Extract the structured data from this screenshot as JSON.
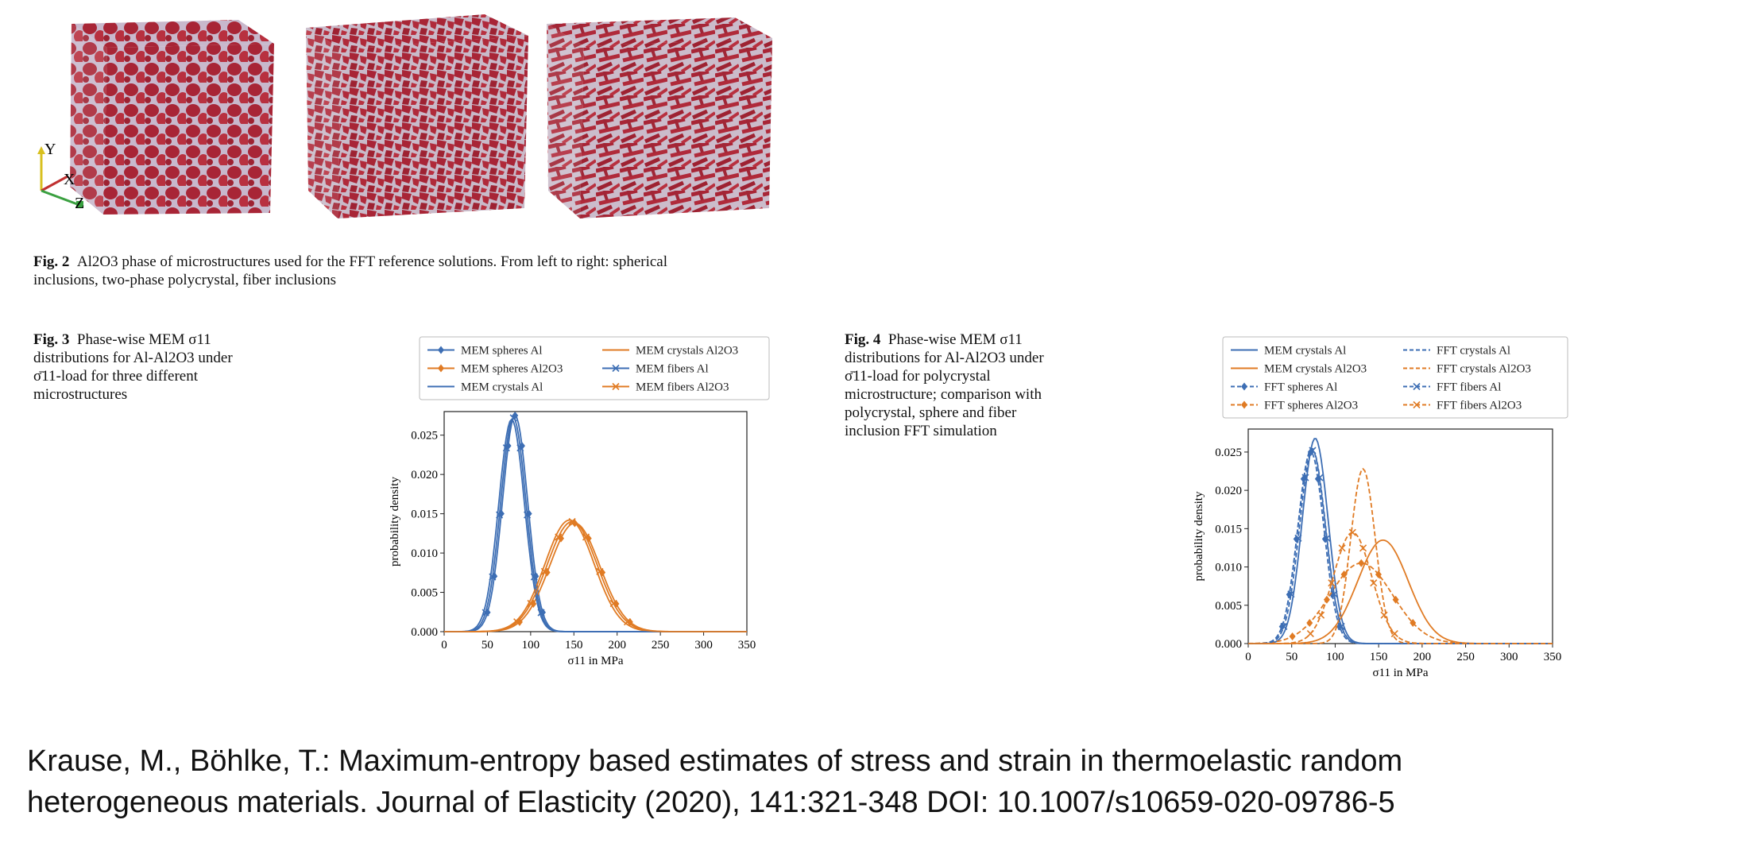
{
  "fig2": {
    "label": "Fig. 2",
    "caption_line1": "Al2O3 phase of microstructures used for the FFT reference solutions. From left to right: spherical",
    "caption_line2": "inclusions, two-phase polycrystal, fiber inclusions",
    "axes": {
      "y": "Y",
      "x": "X",
      "z": "Z"
    },
    "colors": {
      "inclusion": "#b02a3a",
      "matrix_gap": "#c8b8cc"
    },
    "panels": [
      "spherical-inclusions-cube",
      "two-phase-polycrystal-cube",
      "fiber-inclusions-cube"
    ]
  },
  "fig3": {
    "label": "Fig. 3",
    "caption": [
      "Phase-wise MEM σ11",
      "distributions for Al-Al2O3 under",
      "σ̄11-load for three different",
      "microstructures"
    ]
  },
  "fig4": {
    "label": "Fig. 4",
    "caption": [
      "Phase-wise MEM σ11",
      "distributions for Al-Al2O3 under",
      "σ̄11-load for polycrystal",
      "microstructure; comparison with",
      "polycrystal, sphere and fiber",
      "inclusion FFT simulation"
    ]
  },
  "citation": {
    "line1": "Krause, M., Böhlke, T.: Maximum-entropy based estimates of stress and strain in thermoelastic random",
    "line2": "heterogeneous materials. Journal of Elasticity (2020), 141:321-348 DOI: 10.1007/s10659-020-09786-5"
  },
  "chart_data": [
    {
      "type": "line",
      "figure": "Fig. 3",
      "xlabel": "σ11 in MPa",
      "ylabel": "probability density",
      "xlim": [
        0,
        350
      ],
      "ylim": [
        0,
        0.028
      ],
      "xticks": [
        "0",
        "50",
        "100",
        "150",
        "200",
        "250",
        "300",
        "350"
      ],
      "yticks": [
        "0.000",
        "0.005",
        "0.010",
        "0.015",
        "0.020",
        "0.025"
      ],
      "legend_position": "top",
      "grid": false,
      "series": [
        {
          "name": "MEM spheres Al",
          "color": "#3d6eb4",
          "style": "solid",
          "marker": "diamond",
          "mean": 82,
          "sd": 14.5,
          "peak": 0.0275
        },
        {
          "name": "MEM spheres Al2O3",
          "color": "#e07b24",
          "style": "solid",
          "marker": "diamond",
          "mean": 151,
          "sd": 29,
          "peak": 0.0138
        },
        {
          "name": "MEM crystals Al",
          "color": "#3d6eb4",
          "style": "solid",
          "marker": "none",
          "mean": 78,
          "sd": 14.8,
          "peak": 0.027
        },
        {
          "name": "MEM crystals Al2O3",
          "color": "#e07b24",
          "style": "solid",
          "marker": "none",
          "mean": 145,
          "sd": 28.5,
          "peak": 0.0142
        },
        {
          "name": "MEM fibers Al",
          "color": "#3d6eb4",
          "style": "solid",
          "marker": "x",
          "mean": 80,
          "sd": 14.6,
          "peak": 0.0272
        },
        {
          "name": "MEM fibers Al2O3",
          "color": "#e07b24",
          "style": "solid",
          "marker": "x",
          "mean": 148,
          "sd": 29,
          "peak": 0.014
        }
      ]
    },
    {
      "type": "line",
      "figure": "Fig. 4",
      "xlabel": "σ11 in MPa",
      "ylabel": "probability density",
      "xlim": [
        0,
        350
      ],
      "ylim": [
        0,
        0.028
      ],
      "xticks": [
        "0",
        "50",
        "100",
        "150",
        "200",
        "250",
        "300",
        "350"
      ],
      "yticks": [
        "0.000",
        "0.005",
        "0.010",
        "0.015",
        "0.020",
        "0.025"
      ],
      "legend_position": "top",
      "grid": false,
      "series": [
        {
          "name": "MEM crystals Al",
          "color": "#3d6eb4",
          "style": "solid",
          "marker": "none",
          "mean": 77,
          "sd": 14.8,
          "peak": 0.0268
        },
        {
          "name": "MEM crystals Al2O3",
          "color": "#e07b24",
          "style": "solid",
          "marker": "none",
          "mean": 155,
          "sd": 29,
          "peak": 0.0135
        },
        {
          "name": "FFT spheres Al",
          "color": "#3d6eb4",
          "style": "dashed",
          "marker": "diamond",
          "mean": 72,
          "sd": 15,
          "peak": 0.025
        },
        {
          "name": "FFT spheres Al2O3",
          "color": "#e07b24",
          "style": "dashed",
          "marker": "diamond",
          "mean": 130,
          "sd": 36,
          "peak": 0.0105
        },
        {
          "name": "FFT crystals Al",
          "color": "#3d6eb4",
          "style": "dashed",
          "marker": "none",
          "mean": 73,
          "sd": 15.5,
          "peak": 0.0255
        },
        {
          "name": "FFT crystals Al2O3",
          "color": "#e07b24",
          "style": "dashed",
          "marker": "none",
          "mean": 132,
          "sd": 14,
          "peak": 0.0228
        },
        {
          "name": "FFT fibers Al",
          "color": "#3d6eb4",
          "style": "dashed",
          "marker": "x",
          "mean": 74,
          "sd": 15,
          "peak": 0.0252
        },
        {
          "name": "FFT fibers Al2O3",
          "color": "#e07b24",
          "style": "dashed",
          "marker": "x",
          "mean": 120,
          "sd": 22,
          "peak": 0.0145
        }
      ]
    }
  ]
}
